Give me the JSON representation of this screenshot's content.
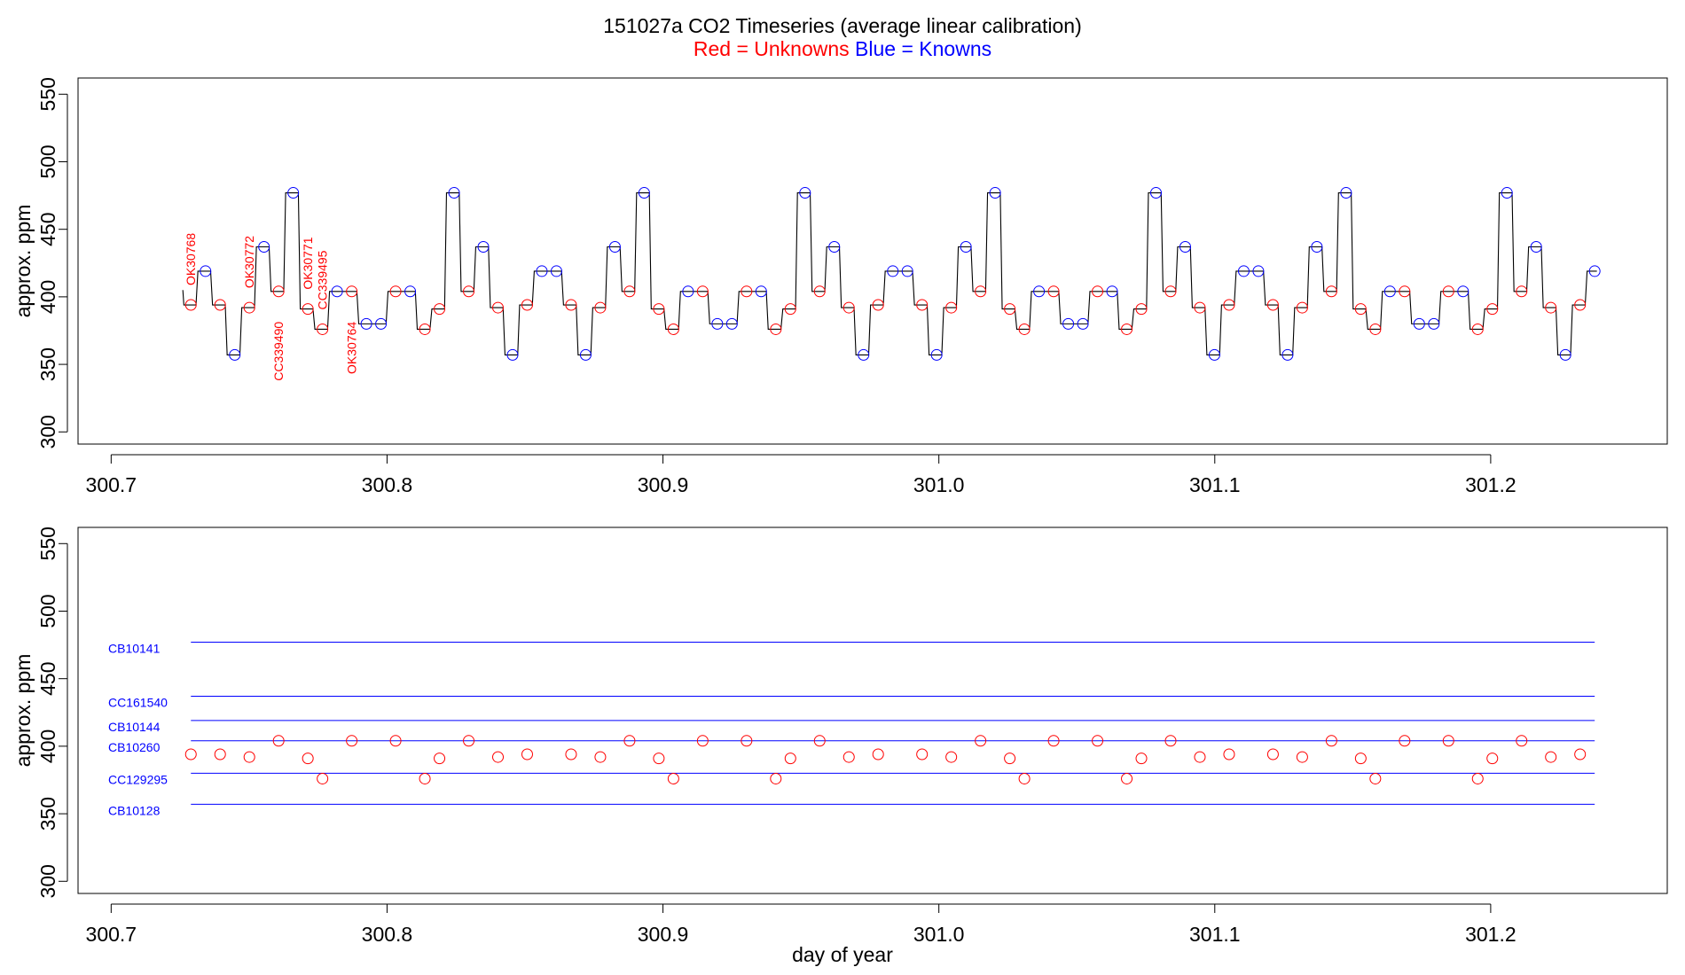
{
  "chart_data": {
    "title": "151027a   CO2 Timeseries (average linear calibration)",
    "legend": {
      "unknowns": "Red = Unknowns",
      "knowns": "Blue = Knowns"
    },
    "colors": {
      "unknowns": "#ff0000",
      "knowns": "#0000ff",
      "trace": "#000000"
    },
    "xlim": [
      300.688,
      301.264
    ],
    "ylim": [
      291,
      562
    ],
    "xticks": [
      "300.7",
      "300.8",
      "300.9",
      "301.0",
      "301.1",
      "301.2"
    ],
    "yticks": [
      "300",
      "350",
      "400",
      "450",
      "500",
      "550"
    ],
    "ylabel": "approx. ppm",
    "xlabel": "day of year",
    "panels": [
      {
        "type": "line",
        "samples": [
          {
            "x": 300.7289,
            "y": 394,
            "kind": "unknown"
          },
          {
            "x": 300.7342,
            "y": 419,
            "kind": "known"
          },
          {
            "x": 300.7395,
            "y": 394,
            "kind": "unknown"
          },
          {
            "x": 300.7448,
            "y": 357,
            "kind": "known"
          },
          {
            "x": 300.7501,
            "y": 392,
            "kind": "unknown"
          },
          {
            "x": 300.7554,
            "y": 437,
            "kind": "known"
          },
          {
            "x": 300.7607,
            "y": 404,
            "kind": "unknown"
          },
          {
            "x": 300.766,
            "y": 477,
            "kind": "known"
          },
          {
            "x": 300.7713,
            "y": 391,
            "kind": "unknown"
          },
          {
            "x": 300.7766,
            "y": 376,
            "kind": "unknown"
          },
          {
            "x": 300.7819,
            "y": 404,
            "kind": "known"
          },
          {
            "x": 300.7872,
            "y": 404,
            "kind": "unknown"
          },
          {
            "x": 300.7925,
            "y": 380,
            "kind": "known"
          },
          {
            "x": 300.7978,
            "y": 380,
            "kind": "known"
          },
          {
            "x": 300.8031,
            "y": 404,
            "kind": "unknown"
          },
          {
            "x": 300.8084,
            "y": 404,
            "kind": "known"
          },
          {
            "x": 300.8137,
            "y": 376,
            "kind": "unknown"
          },
          {
            "x": 300.819,
            "y": 391,
            "kind": "unknown"
          },
          {
            "x": 300.8243,
            "y": 477,
            "kind": "known"
          },
          {
            "x": 300.8296,
            "y": 404,
            "kind": "unknown"
          },
          {
            "x": 300.8349,
            "y": 437,
            "kind": "known"
          },
          {
            "x": 300.8402,
            "y": 392,
            "kind": "unknown"
          },
          {
            "x": 300.8455,
            "y": 357,
            "kind": "known"
          },
          {
            "x": 300.8508,
            "y": 394,
            "kind": "unknown"
          },
          {
            "x": 300.8561,
            "y": 419,
            "kind": "known"
          },
          {
            "x": 300.8614,
            "y": 419,
            "kind": "known"
          },
          {
            "x": 300.8667,
            "y": 394,
            "kind": "unknown"
          },
          {
            "x": 300.872,
            "y": 357,
            "kind": "known"
          },
          {
            "x": 300.8773,
            "y": 392,
            "kind": "unknown"
          },
          {
            "x": 300.8826,
            "y": 437,
            "kind": "known"
          },
          {
            "x": 300.8879,
            "y": 404,
            "kind": "unknown"
          },
          {
            "x": 300.8932,
            "y": 477,
            "kind": "known"
          },
          {
            "x": 300.8985,
            "y": 391,
            "kind": "unknown"
          },
          {
            "x": 300.9038,
            "y": 376,
            "kind": "unknown"
          },
          {
            "x": 300.9091,
            "y": 404,
            "kind": "known"
          },
          {
            "x": 300.9144,
            "y": 404,
            "kind": "unknown"
          },
          {
            "x": 300.9197,
            "y": 380,
            "kind": "known"
          },
          {
            "x": 300.925,
            "y": 380,
            "kind": "known"
          },
          {
            "x": 300.9303,
            "y": 404,
            "kind": "unknown"
          },
          {
            "x": 300.9356,
            "y": 404,
            "kind": "known"
          },
          {
            "x": 300.9409,
            "y": 376,
            "kind": "unknown"
          },
          {
            "x": 300.9462,
            "y": 391,
            "kind": "unknown"
          },
          {
            "x": 300.9515,
            "y": 477,
            "kind": "known"
          },
          {
            "x": 300.9568,
            "y": 404,
            "kind": "unknown"
          },
          {
            "x": 300.9621,
            "y": 437,
            "kind": "known"
          },
          {
            "x": 300.9674,
            "y": 392,
            "kind": "unknown"
          },
          {
            "x": 300.9727,
            "y": 357,
            "kind": "known"
          },
          {
            "x": 300.978,
            "y": 394,
            "kind": "unknown"
          },
          {
            "x": 300.9833,
            "y": 419,
            "kind": "known"
          },
          {
            "x": 300.9886,
            "y": 419,
            "kind": "known"
          },
          {
            "x": 300.9939,
            "y": 394,
            "kind": "unknown"
          },
          {
            "x": 300.9992,
            "y": 357,
            "kind": "known"
          },
          {
            "x": 301.0045,
            "y": 392,
            "kind": "unknown"
          },
          {
            "x": 301.0098,
            "y": 437,
            "kind": "known"
          },
          {
            "x": 301.0151,
            "y": 404,
            "kind": "unknown"
          },
          {
            "x": 301.0204,
            "y": 477,
            "kind": "known"
          },
          {
            "x": 301.0257,
            "y": 391,
            "kind": "unknown"
          },
          {
            "x": 301.031,
            "y": 376,
            "kind": "unknown"
          },
          {
            "x": 301.0363,
            "y": 404,
            "kind": "known"
          },
          {
            "x": 301.0416,
            "y": 404,
            "kind": "unknown"
          },
          {
            "x": 301.0469,
            "y": 380,
            "kind": "known"
          },
          {
            "x": 301.0522,
            "y": 380,
            "kind": "known"
          },
          {
            "x": 301.0575,
            "y": 404,
            "kind": "unknown"
          },
          {
            "x": 301.0628,
            "y": 404,
            "kind": "known"
          },
          {
            "x": 301.0681,
            "y": 376,
            "kind": "unknown"
          },
          {
            "x": 301.0734,
            "y": 391,
            "kind": "unknown"
          },
          {
            "x": 301.0787,
            "y": 477,
            "kind": "known"
          },
          {
            "x": 301.084,
            "y": 404,
            "kind": "unknown"
          },
          {
            "x": 301.0893,
            "y": 437,
            "kind": "known"
          },
          {
            "x": 301.0946,
            "y": 392,
            "kind": "unknown"
          },
          {
            "x": 301.0999,
            "y": 357,
            "kind": "known"
          },
          {
            "x": 301.1052,
            "y": 394,
            "kind": "unknown"
          },
          {
            "x": 301.1105,
            "y": 419,
            "kind": "known"
          },
          {
            "x": 301.1158,
            "y": 419,
            "kind": "known"
          },
          {
            "x": 301.1211,
            "y": 394,
            "kind": "unknown"
          },
          {
            "x": 301.1264,
            "y": 357,
            "kind": "known"
          },
          {
            "x": 301.1317,
            "y": 392,
            "kind": "unknown"
          },
          {
            "x": 301.137,
            "y": 437,
            "kind": "known"
          },
          {
            "x": 301.1423,
            "y": 404,
            "kind": "unknown"
          },
          {
            "x": 301.1476,
            "y": 477,
            "kind": "known"
          },
          {
            "x": 301.1529,
            "y": 391,
            "kind": "unknown"
          },
          {
            "x": 301.1582,
            "y": 376,
            "kind": "unknown"
          },
          {
            "x": 301.1635,
            "y": 404,
            "kind": "known"
          },
          {
            "x": 301.1688,
            "y": 404,
            "kind": "unknown"
          },
          {
            "x": 301.1741,
            "y": 380,
            "kind": "known"
          },
          {
            "x": 301.1794,
            "y": 380,
            "kind": "known"
          },
          {
            "x": 301.1847,
            "y": 404,
            "kind": "unknown"
          },
          {
            "x": 301.19,
            "y": 404,
            "kind": "known"
          },
          {
            "x": 301.1953,
            "y": 376,
            "kind": "unknown"
          },
          {
            "x": 301.2006,
            "y": 391,
            "kind": "unknown"
          },
          {
            "x": 301.2059,
            "y": 477,
            "kind": "known"
          },
          {
            "x": 301.2112,
            "y": 404,
            "kind": "unknown"
          },
          {
            "x": 301.2165,
            "y": 437,
            "kind": "known"
          },
          {
            "x": 301.2218,
            "y": 392,
            "kind": "unknown"
          },
          {
            "x": 301.2271,
            "y": 357,
            "kind": "known"
          },
          {
            "x": 301.2324,
            "y": 394,
            "kind": "unknown"
          },
          {
            "x": 301.2377,
            "y": 419,
            "kind": "known"
          }
        ],
        "annotations": [
          {
            "text": "OK30768",
            "x": 300.7289,
            "y": 394,
            "side": "above"
          },
          {
            "text": "OK30772",
            "x": 300.7501,
            "y": 392,
            "side": "above"
          },
          {
            "text": "CC339490",
            "x": 300.7607,
            "y": 404,
            "side": "below"
          },
          {
            "text": "OK30771",
            "x": 300.7713,
            "y": 391,
            "side": "above"
          },
          {
            "text": "CC339495",
            "x": 300.7766,
            "y": 376,
            "side": "above"
          },
          {
            "text": "OK30764",
            "x": 300.7872,
            "y": 404,
            "side": "below"
          }
        ]
      },
      {
        "type": "scatter",
        "known_lines": [
          {
            "name": "CB10141",
            "y": 477
          },
          {
            "name": "CC161540",
            "y": 437
          },
          {
            "name": "CB10144",
            "y": 419
          },
          {
            "name": "CB10260",
            "y": 404
          },
          {
            "name": "CC129295",
            "y": 380
          },
          {
            "name": "CB10128",
            "y": 357
          }
        ],
        "line_x": [
          300.7289,
          301.2377
        ]
      }
    ]
  }
}
